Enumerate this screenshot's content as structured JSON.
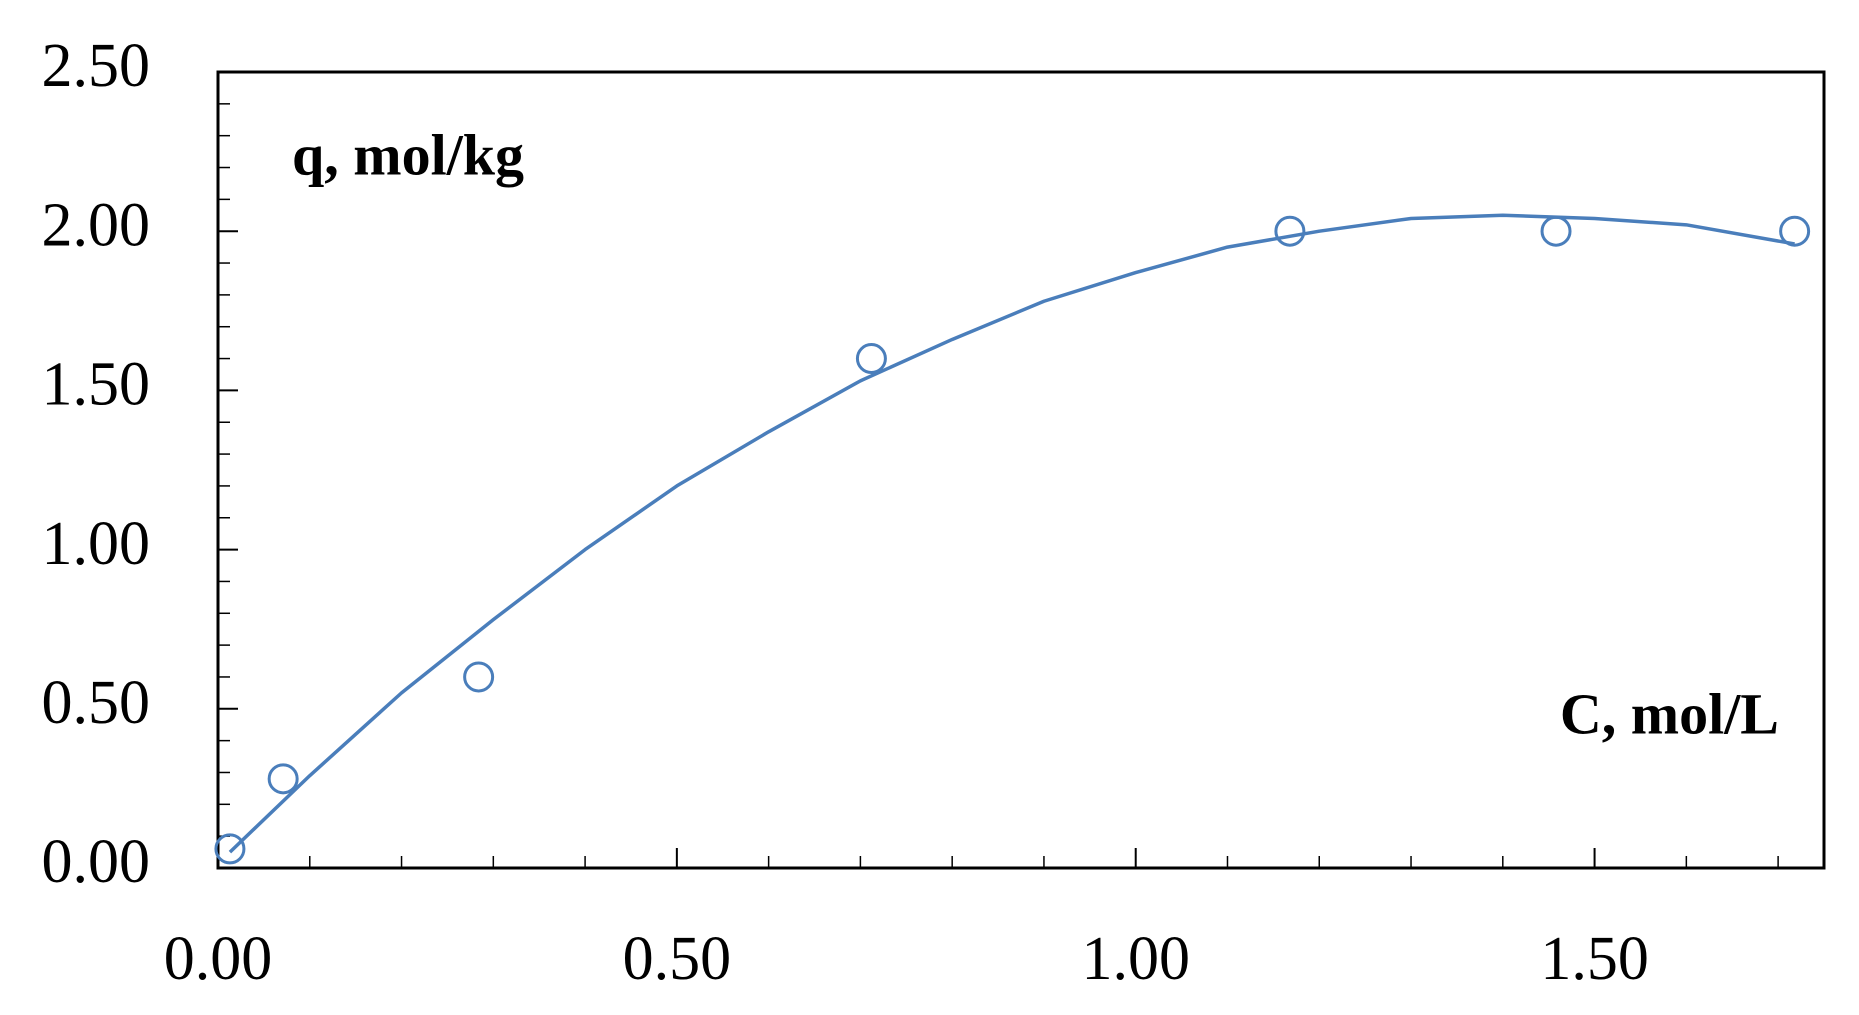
{
  "chart_data": {
    "type": "scatter",
    "y_label": "q, mol/kg",
    "x_label": "C, mol/L",
    "xlim": [
      0,
      1.75
    ],
    "ylim": [
      0,
      2.5
    ],
    "xticks": [
      {
        "value": 0,
        "label": "0.00"
      },
      {
        "value": 0.5,
        "label": "0.50"
      },
      {
        "value": 1,
        "label": "1.00"
      },
      {
        "value": 1.5,
        "label": "1.50"
      }
    ],
    "yticks": [
      {
        "value": 0,
        "label": "0.00"
      },
      {
        "value": 0.5,
        "label": "0.50"
      },
      {
        "value": 1,
        "label": "1.00"
      },
      {
        "value": 1.5,
        "label": "1.50"
      },
      {
        "value": 2,
        "label": "2.00"
      },
      {
        "value": 2.5,
        "label": "2.50"
      }
    ],
    "xminorticks": [
      0.1,
      0.2,
      0.3,
      0.4,
      0.6,
      0.7,
      0.8,
      0.9,
      1.1,
      1.2,
      1.3,
      1.4,
      1.6,
      1.7
    ],
    "yminorticks": [
      0.1,
      0.2,
      0.3,
      0.4,
      0.6,
      0.7,
      0.8,
      0.9,
      1.1,
      1.2,
      1.3,
      1.4,
      1.6,
      1.7,
      1.8,
      1.9,
      2.1,
      2.2,
      2.3,
      2.4
    ],
    "series": [
      {
        "kind": "points",
        "color": "#4a7ebb",
        "x": [
          0.013,
          0.071,
          0.284,
          0.712,
          1.168,
          1.458,
          1.718
        ],
        "values": [
          0.06,
          0.28,
          0.6,
          1.6,
          2.0,
          2.0,
          2.0
        ]
      },
      {
        "kind": "fit",
        "color": "#4a7ebb",
        "x": [
          0.013,
          0.1,
          0.2,
          0.3,
          0.4,
          0.5,
          0.6,
          0.7,
          0.8,
          0.9,
          1.0,
          1.1,
          1.2,
          1.3,
          1.4,
          1.5,
          1.6,
          1.718
        ],
        "values": [
          0.05,
          0.29,
          0.55,
          0.78,
          1.0,
          1.2,
          1.37,
          1.53,
          1.66,
          1.78,
          1.87,
          1.95,
          2.0,
          2.04,
          2.05,
          2.04,
          2.02,
          1.96
        ]
      }
    ]
  }
}
